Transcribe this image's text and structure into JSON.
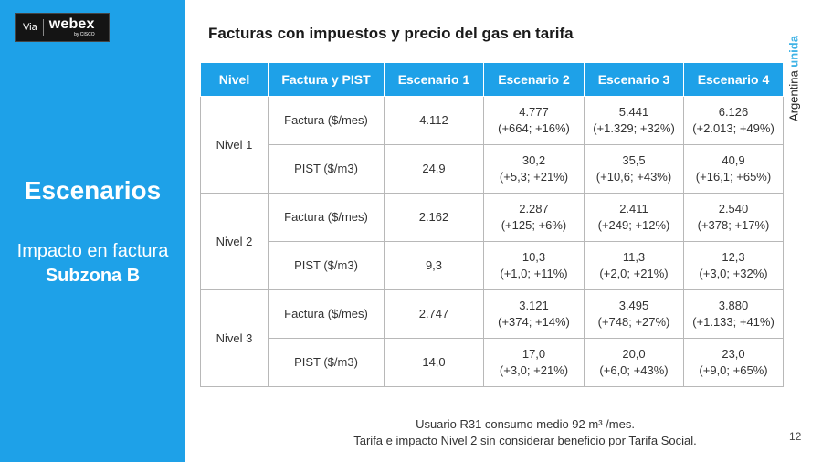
{
  "badge": {
    "via": "Via",
    "brand": "webex",
    "sub": "by CISCO"
  },
  "sidebar": {
    "title": "Escenarios",
    "subtitle_line1": "Impacto en factura",
    "subtitle_line2": "Subzona B"
  },
  "slide_title": "Facturas con impuestos y precio del gas en tarifa",
  "brand_mark": {
    "part1": "Argentina ",
    "part2": "unida"
  },
  "table": {
    "headers": [
      "Nivel",
      "Factura y PIST",
      "Escenario 1",
      "Escenario 2",
      "Escenario 3",
      "Escenario 4"
    ],
    "groups": [
      {
        "nivel": "Nivel 1",
        "rows": [
          {
            "label": "Factura ($/mes)",
            "cells": [
              {
                "val": "4.112",
                "delta": ""
              },
              {
                "val": "4.777",
                "delta": "(+664; +16%)"
              },
              {
                "val": "5.441",
                "delta": "(+1.329; +32%)"
              },
              {
                "val": "6.126",
                "delta": "(+2.013; +49%)"
              }
            ]
          },
          {
            "label": "PIST ($/m3)",
            "cells": [
              {
                "val": "24,9",
                "delta": ""
              },
              {
                "val": "30,2",
                "delta": "(+5,3; +21%)"
              },
              {
                "val": "35,5",
                "delta": "(+10,6; +43%)"
              },
              {
                "val": "40,9",
                "delta": "(+16,1; +65%)"
              }
            ]
          }
        ]
      },
      {
        "nivel": "Nivel 2",
        "rows": [
          {
            "label": "Factura ($/mes)",
            "cells": [
              {
                "val": "2.162",
                "delta": ""
              },
              {
                "val": "2.287",
                "delta": "(+125; +6%)"
              },
              {
                "val": "2.411",
                "delta": "(+249; +12%)"
              },
              {
                "val": "2.540",
                "delta": "(+378; +17%)"
              }
            ]
          },
          {
            "label": "PIST ($/m3)",
            "cells": [
              {
                "val": "9,3",
                "delta": ""
              },
              {
                "val": "10,3",
                "delta": "(+1,0; +11%)"
              },
              {
                "val": "11,3",
                "delta": "(+2,0; +21%)"
              },
              {
                "val": "12,3",
                "delta": "(+3,0; +32%)"
              }
            ]
          }
        ]
      },
      {
        "nivel": "Nivel 3",
        "rows": [
          {
            "label": "Factura ($/mes)",
            "cells": [
              {
                "val": "2.747",
                "delta": ""
              },
              {
                "val": "3.121",
                "delta": "(+374; +14%)"
              },
              {
                "val": "3.495",
                "delta": "(+748; +27%)"
              },
              {
                "val": "3.880",
                "delta": "(+1.133; +41%)"
              }
            ]
          },
          {
            "label": "PIST ($/m3)",
            "cells": [
              {
                "val": "14,0",
                "delta": ""
              },
              {
                "val": "17,0",
                "delta": "(+3,0; +21%)"
              },
              {
                "val": "20,0",
                "delta": "(+6,0; +43%)"
              },
              {
                "val": "23,0",
                "delta": "(+9,0; +65%)"
              }
            ]
          }
        ]
      }
    ]
  },
  "footnote": {
    "line1": "Usuario R31 consumo medio 92 m³ /mes.",
    "line2": "Tarifa e impacto Nivel 2 sin considerar beneficio por Tarifa Social."
  },
  "page_number": "12"
}
